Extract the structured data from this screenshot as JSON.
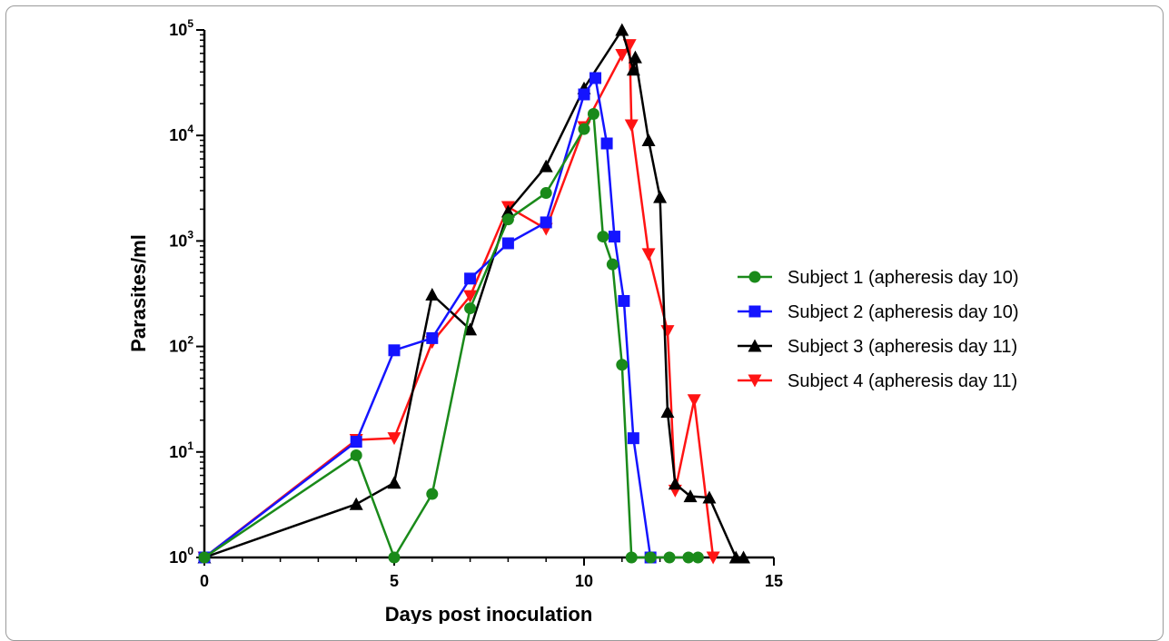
{
  "chart_data": {
    "type": "line",
    "xlabel": "Days post inoculation",
    "ylabel": "Parasites/ml",
    "xlim": [
      0,
      15
    ],
    "ylim_log10": [
      0,
      5
    ],
    "y_scale": "log10",
    "grid": false,
    "legend_placement": "right",
    "x_ticks": [
      "0",
      "5",
      "10",
      "15"
    ],
    "y_ticks": [
      {
        "base": "10",
        "exp": "0"
      },
      {
        "base": "10",
        "exp": "1"
      },
      {
        "base": "10",
        "exp": "2"
      },
      {
        "base": "10",
        "exp": "3"
      },
      {
        "base": "10",
        "exp": "4"
      },
      {
        "base": "10",
        "exp": "5"
      }
    ],
    "series": [
      {
        "name": "Subject 1 (apheresis day 10)",
        "color": "#1a8a1a",
        "marker": "circle",
        "x": [
          0,
          4,
          5,
          6,
          7,
          8,
          9,
          10,
          10.25,
          10.5,
          10.75,
          11,
          11.25,
          11.75,
          12.25,
          12.75,
          13
        ],
        "y": [
          1,
          9.3,
          1,
          4,
          230,
          1600,
          2850,
          11500,
          16000,
          1100,
          600,
          67,
          1,
          1,
          1,
          1,
          1
        ]
      },
      {
        "name": "Subject 2 (apheresis day 10)",
        "color": "#1414ff",
        "marker": "square",
        "x": [
          0,
          4,
          5,
          6,
          7,
          8,
          9,
          10,
          10.3,
          10.6,
          10.8,
          11.05,
          11.3,
          11.75
        ],
        "y": [
          1,
          12.5,
          92,
          120,
          440,
          950,
          1500,
          24500,
          35000,
          8400,
          1100,
          270,
          13.5,
          1
        ]
      },
      {
        "name": "Subject 3 (apheresis day 11)",
        "color": "#000000",
        "marker": "triangle-up",
        "x": [
          0,
          4,
          5,
          6,
          7,
          8,
          9,
          10,
          11,
          11.3,
          11.35,
          11.7,
          12,
          12.2,
          12.4,
          12.8,
          13.3,
          14,
          14.2
        ],
        "y": [
          1,
          3.2,
          5.1,
          310,
          145,
          1900,
          5100,
          28000,
          100000,
          42000,
          55000,
          9000,
          2600,
          24,
          5,
          3.8,
          3.7,
          1,
          1
        ]
      },
      {
        "name": "Subject 4 (apheresis day 11)",
        "color": "#ff1414",
        "marker": "triangle-down",
        "x": [
          0,
          4,
          5,
          6,
          7,
          8,
          9,
          10,
          11,
          11.2,
          11.25,
          11.7,
          12.2,
          12.4,
          12.9,
          13.4
        ],
        "y": [
          1,
          13,
          13.5,
          110,
          300,
          2100,
          1300,
          12000,
          58000,
          72000,
          12500,
          750,
          140,
          4.3,
          31,
          1
        ]
      }
    ]
  }
}
